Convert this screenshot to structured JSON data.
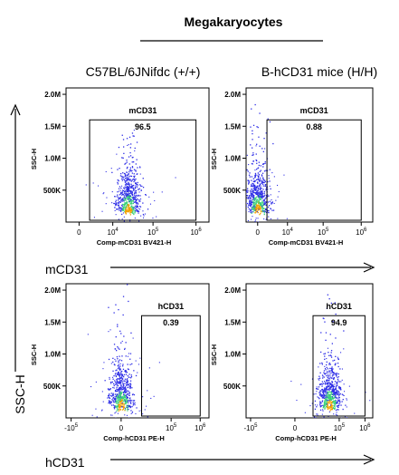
{
  "figure": {
    "title": "Megakaryocytes",
    "group_labels": [
      "C57BL/6JNifdc (+/+)",
      "B-hCD31 mice (H/H)"
    ],
    "row_axis_labels": [
      "mCD31",
      "hCD31"
    ],
    "y_axis_label": "SSC-H"
  },
  "colors": {
    "scatter_low": "#2e2ee6",
    "scatter_mid": "#3ad17a",
    "scatter_high": "#f2a000",
    "gate": "#000000",
    "frame": "#000000"
  },
  "chart_data": [
    {
      "type": "scatter",
      "title": "mCD31",
      "group": "C57BL/6JNifdc (+/+)",
      "xlabel": "Comp-mCD31 BV421-H",
      "ylabel": "SSC-H",
      "x_scale": "biexponential",
      "x_tick_labels": [
        "0",
        "10^4",
        "10^5",
        "10^6"
      ],
      "y_tick_labels": [
        "500K",
        "1.0M",
        "1.5M",
        "2.0M"
      ],
      "ylim": [
        0,
        2100000
      ],
      "gate": {
        "label": "mCD31",
        "percent": "96.5",
        "x_range": [
          1500,
          1000000
        ],
        "y_range": [
          0,
          1600000
        ]
      },
      "population_center": {
        "x": 25000,
        "y": 150000
      }
    },
    {
      "type": "scatter",
      "title": "mCD31",
      "group": "B-hCD31 mice (H/H)",
      "xlabel": "Comp-mCD31 BV421-H",
      "ylabel": "SSC-H",
      "x_scale": "biexponential",
      "x_tick_labels": [
        "0",
        "10^4",
        "10^5",
        "10^6"
      ],
      "y_tick_labels": [
        "500K",
        "1.0M",
        "1.5M",
        "2.0M"
      ],
      "ylim": [
        0,
        2100000
      ],
      "gate": {
        "label": "mCD31",
        "percent": "0.88",
        "x_range": [
          1500,
          1000000
        ],
        "y_range": [
          0,
          1600000
        ]
      },
      "population_center": {
        "x": 0,
        "y": 150000
      }
    },
    {
      "type": "scatter",
      "title": "hCD31",
      "group": "C57BL/6JNifdc (+/+)",
      "xlabel": "Comp-hCD31 PE-H",
      "ylabel": "SSC-H",
      "x_scale": "biexponential",
      "x_tick_labels": [
        "-10^5",
        "0",
        "10^5",
        "10^6"
      ],
      "y_tick_labels": [
        "500K",
        "1.0M",
        "1.5M",
        "2.0M"
      ],
      "ylim": [
        0,
        2100000
      ],
      "gate": {
        "label": "hCD31",
        "percent": "0.39",
        "x_range": [
          8000,
          1000000
        ],
        "y_range": [
          0,
          1600000
        ]
      },
      "population_center": {
        "x": 0,
        "y": 150000
      }
    },
    {
      "type": "scatter",
      "title": "hCD31",
      "group": "B-hCD31 mice (H/H)",
      "xlabel": "Comp-hCD31 PE-H",
      "ylabel": "SSC-H",
      "x_scale": "biexponential",
      "x_tick_labels": [
        "-10^5",
        "0",
        "10^5",
        "10^6"
      ],
      "y_tick_labels": [
        "500K",
        "1.0M",
        "1.5M",
        "2.0M"
      ],
      "ylim": [
        0,
        2100000
      ],
      "gate": {
        "label": "hCD31",
        "percent": "94.9",
        "x_range": [
          8000,
          1000000
        ],
        "y_range": [
          0,
          1600000
        ]
      },
      "population_center": {
        "x": 40000,
        "y": 150000
      }
    }
  ]
}
